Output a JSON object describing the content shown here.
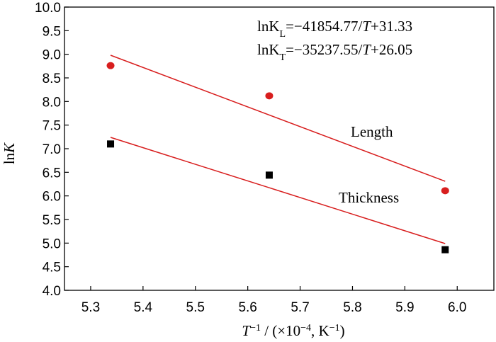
{
  "chart_data": {
    "type": "scatter",
    "xlabel": {
      "prefix": "T",
      "superscript": "−1",
      "rest": " / (×10",
      "exp": "−4",
      "unit": ", K",
      "unit_exp": "−1",
      "close": ")"
    },
    "ylabel": {
      "prefix": "ln",
      "italic": "K"
    },
    "xlim": [
      5.25,
      6.07
    ],
    "ylim": [
      4.0,
      10.0
    ],
    "xticks": [
      "5.3",
      "5.4",
      "5.5",
      "5.6",
      "5.7",
      "5.8",
      "5.9",
      "6.0"
    ],
    "xtick_values": [
      5.3,
      5.4,
      5.5,
      5.6,
      5.7,
      5.8,
      5.9,
      6.0
    ],
    "yticks": [
      "4.0",
      "4.5",
      "5.0",
      "5.5",
      "6.0",
      "6.5",
      "7.0",
      "7.5",
      "8.0",
      "8.5",
      "9.0",
      "9.5",
      "10.0"
    ],
    "ytick_values": [
      4.0,
      4.5,
      5.0,
      5.5,
      6.0,
      6.5,
      7.0,
      7.5,
      8.0,
      8.5,
      9.0,
      9.5,
      10.0
    ],
    "series": [
      {
        "name": "Length",
        "marker": "circle",
        "color": "#d81e1e",
        "x": [
          5.338,
          5.641,
          5.977
        ],
        "y": [
          8.76,
          8.12,
          6.11
        ],
        "fit": {
          "x": [
            5.338,
            5.977
          ],
          "y": [
            8.98,
            6.31
          ]
        }
      },
      {
        "name": "Thickness",
        "marker": "square",
        "color": "#000000",
        "x": [
          5.338,
          5.641,
          5.977
        ],
        "y": [
          7.1,
          6.44,
          4.86
        ],
        "fit": {
          "x": [
            5.338,
            5.977
          ],
          "y": [
            7.24,
            4.99
          ]
        }
      }
    ],
    "fit_color": "#d81e1e",
    "annotations": {
      "eq_length": {
        "lhs": "lnK",
        "sub": "L",
        "rhs": "=−41854.77/",
        "var": "T",
        "tail": "+31.33"
      },
      "eq_thickness": {
        "lhs": "lnK",
        "sub": "T",
        "rhs": "=−35237.55/",
        "var": "T",
        "tail": "+26.05"
      },
      "label_length": "Length",
      "label_thickness": "Thickness"
    },
    "grid": false,
    "legend": "none"
  }
}
